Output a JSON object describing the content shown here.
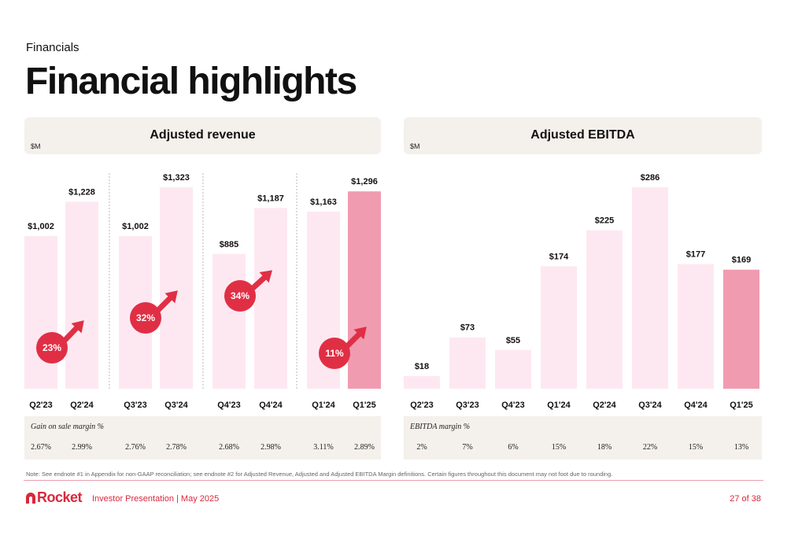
{
  "header": {
    "section": "Financials",
    "title": "Financial highlights"
  },
  "colors": {
    "bar_light": "#fde8f1",
    "bar_highlight": "#f19bb1",
    "accent_red": "#e02f44",
    "panel_bg": "#f4f1ec"
  },
  "chart_data": [
    {
      "type": "bar",
      "title": "Adjusted revenue",
      "unit": "$M",
      "categories": [
        "Q2'23",
        "Q2'24",
        "Q3'23",
        "Q3'24",
        "Q4'23",
        "Q4'24",
        "Q1'24",
        "Q1'25"
      ],
      "values": [
        1002,
        1228,
        1002,
        1323,
        885,
        1187,
        1163,
        1296
      ],
      "value_labels": [
        "$1,002",
        "$1,228",
        "$1,002",
        "$1,323",
        "$885",
        "$1,187",
        "$1,163",
        "$1,296"
      ],
      "highlight_index": 7,
      "groups": [
        [
          0,
          1
        ],
        [
          2,
          3
        ],
        [
          4,
          5
        ],
        [
          6,
          7
        ]
      ],
      "growth_labels": [
        "23%",
        "32%",
        "34%",
        "11%"
      ],
      "margin_title": "Gain on sale margin %",
      "margins": [
        "2.67%",
        "2.99%",
        "2.76%",
        "2.78%",
        "2.68%",
        "2.98%",
        "3.11%",
        "2.89%"
      ]
    },
    {
      "type": "bar",
      "title": "Adjusted EBITDA",
      "unit": "$M",
      "categories": [
        "Q2'23",
        "Q3'23",
        "Q4'23",
        "Q1'24",
        "Q2'24",
        "Q3'24",
        "Q4'24",
        "Q1'25"
      ],
      "values": [
        18,
        73,
        55,
        174,
        225,
        286,
        177,
        169
      ],
      "value_labels": [
        "$18",
        "$73",
        "$55",
        "$174",
        "$225",
        "$286",
        "$177",
        "$169"
      ],
      "highlight_index": 7,
      "margin_title": "EBITDA margin %",
      "margins": [
        "2%",
        "7%",
        "6%",
        "15%",
        "18%",
        "22%",
        "15%",
        "13%"
      ]
    }
  ],
  "footer": {
    "note": "Note: See endnote #1 in Appendix for non-GAAP reconciliation; see endnote #2 for Adjusted Revenue, Adjusted and Adjusted EBITDA Margin definitions. Certain figures throughout this document may not foot due to rounding.",
    "brand": "Rocket",
    "presentation": "Investor Presentation | May 2025",
    "page": "27 of 38"
  }
}
